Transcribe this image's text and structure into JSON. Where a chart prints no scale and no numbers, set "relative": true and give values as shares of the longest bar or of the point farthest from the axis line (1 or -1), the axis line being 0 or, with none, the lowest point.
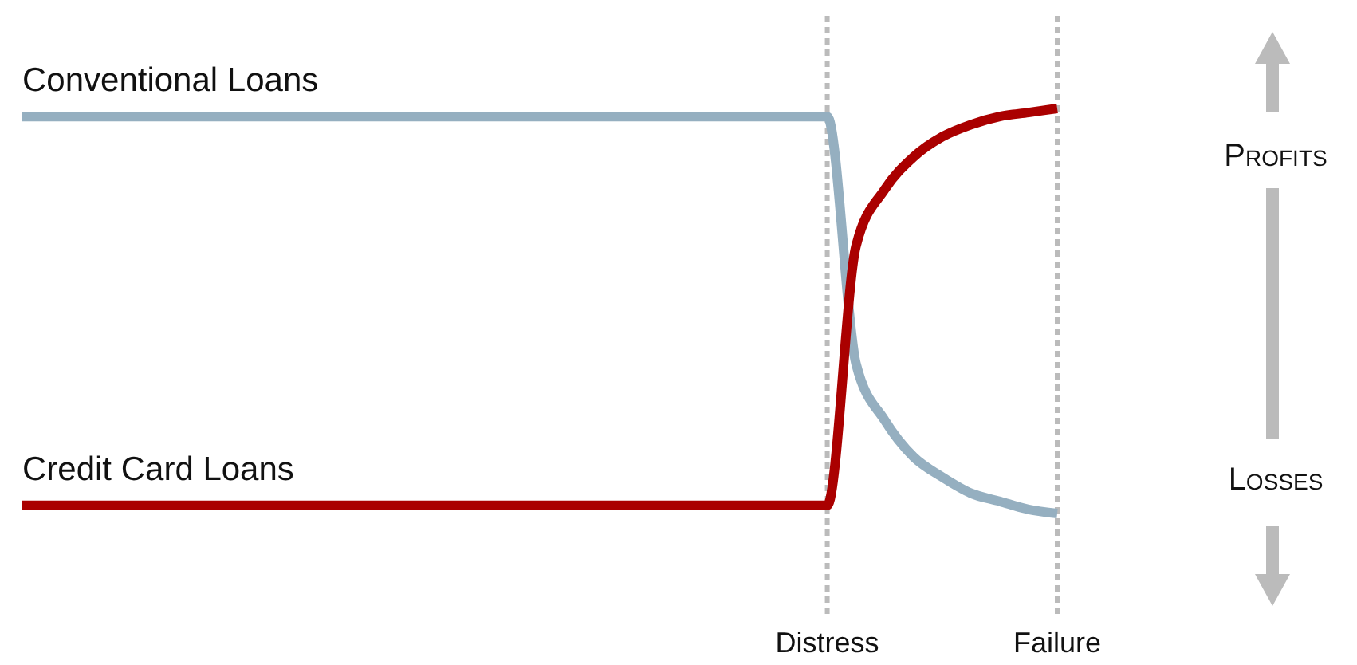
{
  "chart_data": {
    "type": "line",
    "relative": true,
    "legend": false,
    "grid": false,
    "marker": "none",
    "line_style": "solid",
    "categories": [
      null,
      null,
      null,
      null,
      null,
      null,
      null,
      null,
      null,
      null,
      null,
      null,
      null,
      null,
      null,
      null,
      null,
      null,
      null,
      null,
      null,
      null,
      null,
      null,
      null,
      null,
      null,
      null,
      "Distress",
      null,
      null,
      null,
      null,
      null,
      null,
      null,
      "Failure"
    ],
    "ref_lines": [
      {
        "axis": "x",
        "value": "Distress",
        "color": "#bbbbbb",
        "line_style": "dotted"
      },
      {
        "axis": "x",
        "value": "Failure",
        "color": "#bbbbbb",
        "line_style": "dotted"
      }
    ],
    "annotations": [
      "Profits",
      "Losses"
    ],
    "series": [
      {
        "name": "Conventional Loans",
        "color": "#95afc0",
        "values": [
          0.98,
          0.98,
          0.98,
          0.98,
          0.98,
          0.98,
          0.98,
          0.98,
          0.98,
          0.98,
          0.98,
          0.98,
          0.98,
          0.98,
          0.98,
          0.98,
          0.98,
          0.98,
          0.98,
          0.98,
          0.98,
          0.98,
          0.98,
          0.98,
          0.98,
          0.98,
          0.98,
          0.98,
          0.98,
          0.37,
          0.23,
          0.14,
          0.09,
          0.05,
          0.03,
          0.01,
          0
        ]
      },
      {
        "name": "Credit Card Loans",
        "color": "#aa0000",
        "values": [
          0.02,
          0.02,
          0.02,
          0.02,
          0.02,
          0.02,
          0.02,
          0.02,
          0.02,
          0.02,
          0.02,
          0.02,
          0.02,
          0.02,
          0.02,
          0.02,
          0.02,
          0.02,
          0.02,
          0.02,
          0.02,
          0.02,
          0.02,
          0.02,
          0.02,
          0.02,
          0.02,
          0.02,
          0.02,
          0.66,
          0.8,
          0.88,
          0.93,
          0.96,
          0.98,
          0.99,
          1
        ]
      }
    ]
  }
}
